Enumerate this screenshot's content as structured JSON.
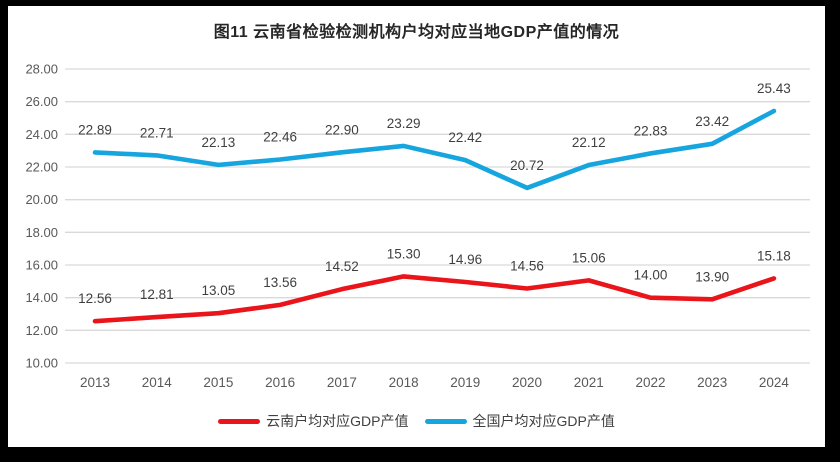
{
  "page_background": "#000000",
  "chart_background": "#ffffff",
  "title": "图11 云南省检验检测机构户均对应当地GDP产值的情况",
  "colors": {
    "yunnan_line": "#e9151b",
    "national_line": "#16a5df",
    "gridline": "#d9d9d9",
    "axis_text": "#595959",
    "data_label_text": "#3f3f3f",
    "title_text": "#262626"
  },
  "chart_data": {
    "type": "line",
    "title": "图11 云南省检验检测机构户均对应当地GDP产值的情况",
    "categories": [
      "2013",
      "2014",
      "2015",
      "2016",
      "2017",
      "2018",
      "2019",
      "2020",
      "2021",
      "2022",
      "2023",
      "2024"
    ],
    "series": [
      {
        "key": "yunnan",
        "name": "云南户均对应GDP产值",
        "color": "#e9151b",
        "values": [
          12.56,
          12.81,
          13.05,
          13.56,
          14.52,
          15.3,
          14.96,
          14.56,
          15.06,
          14.0,
          13.9,
          15.18
        ]
      },
      {
        "key": "national",
        "name": "全国户均对应GDP产值",
        "color": "#16a5df",
        "values": [
          22.89,
          22.71,
          22.13,
          22.46,
          22.9,
          23.29,
          22.42,
          20.72,
          22.12,
          22.83,
          23.42,
          25.43
        ]
      }
    ],
    "xlabel": "",
    "ylabel": "",
    "ylim": [
      10,
      28
    ],
    "ytick_step": 2,
    "ytick_labels": [
      "28.00",
      "26.00",
      "24.00",
      "22.00",
      "20.00",
      "18.00",
      "16.00",
      "14.00",
      "12.00",
      "10.00"
    ],
    "grid": true,
    "data_labels": true,
    "legend_position": "bottom"
  }
}
